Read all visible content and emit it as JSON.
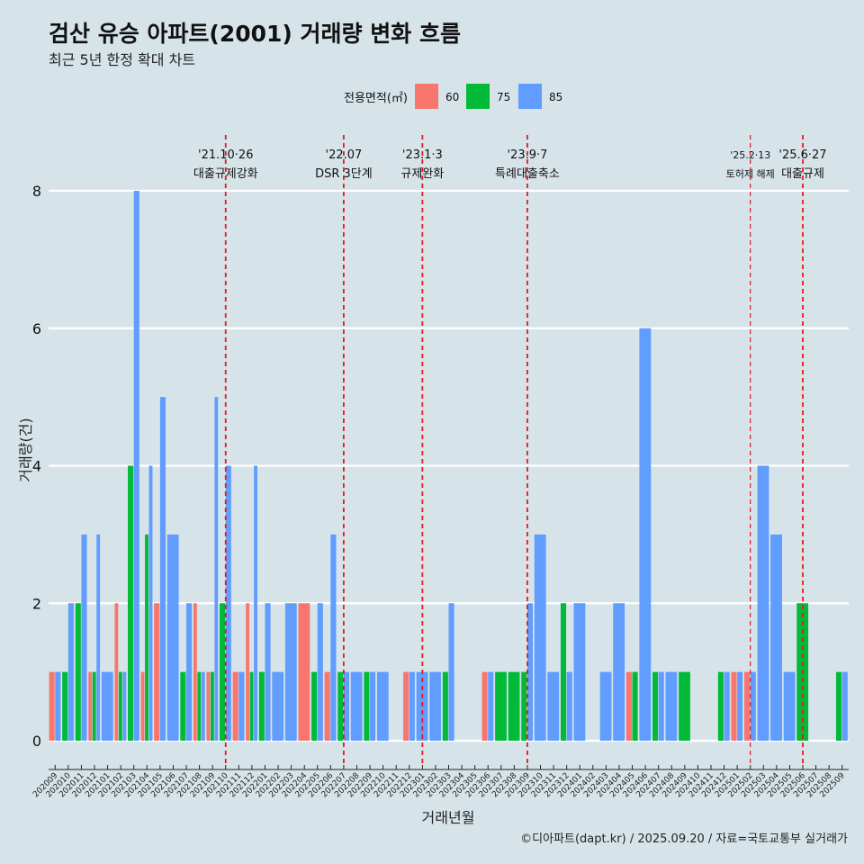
{
  "title": "검산 유승 아파트(2001) 거래량 변화 흐름",
  "subtitle": "최근 5년 한정 확대 차트",
  "caption": "©디아파트(dapt.kr) / 2025.09.20 / 자료=국토교통부 실거래가",
  "colors": {
    "60": "#f8766d",
    "75": "#00ba38",
    "85": "#619cff",
    "background": "#d6e4ea",
    "policy_line": "#e41a1c"
  },
  "chart_data": {
    "type": "bar",
    "title": "검산 유승 아파트(2001) 거래량 변화 흐름",
    "subtitle": "최근 5년 한정 확대 차트",
    "xlabel": "거래년월",
    "ylabel": "거래량(건)",
    "ylim": [
      0,
      8
    ],
    "yticks": [
      0,
      2,
      4,
      6,
      8
    ],
    "grid": "horizontal",
    "legend": {
      "title": "전용면적(㎡)",
      "position": "top",
      "entries": [
        "60",
        "75",
        "85"
      ]
    },
    "categories": [
      "202009",
      "202010",
      "202011",
      "202012",
      "202101",
      "202102",
      "202103",
      "202104",
      "202105",
      "202106",
      "202107",
      "202108",
      "202109",
      "202110",
      "202111",
      "202112",
      "202201",
      "202202",
      "202203",
      "202204",
      "202205",
      "202206",
      "202207",
      "202208",
      "202209",
      "202210",
      "202211",
      "202212",
      "202301",
      "202302",
      "202303",
      "202304",
      "202305",
      "202306",
      "202307",
      "202308",
      "202309",
      "202310",
      "202311",
      "202312",
      "202401",
      "202402",
      "202403",
      "202404",
      "202405",
      "202406",
      "202407",
      "202408",
      "202409",
      "202410",
      "202411",
      "202412",
      "202501",
      "202502",
      "202503",
      "202504",
      "202505",
      "202506",
      "202507",
      "202508",
      "202509"
    ],
    "series": [
      {
        "name": "60",
        "values": [
          1,
          0,
          0,
          1,
          0,
          2,
          0,
          1,
          2,
          0,
          0,
          2,
          1,
          0,
          1,
          2,
          0,
          0,
          0,
          2,
          0,
          1,
          0,
          0,
          0,
          0,
          0,
          1,
          0,
          0,
          0,
          0,
          0,
          1,
          0,
          0,
          0,
          0,
          0,
          0,
          0,
          0,
          0,
          0,
          1,
          0,
          0,
          0,
          0,
          0,
          0,
          0,
          1,
          1,
          0,
          0,
          0,
          0,
          0,
          0,
          0
        ]
      },
      {
        "name": "75",
        "values": [
          0,
          1,
          2,
          1,
          0,
          1,
          4,
          3,
          0,
          0,
          1,
          1,
          1,
          2,
          0,
          1,
          1,
          0,
          0,
          0,
          1,
          0,
          1,
          0,
          1,
          0,
          0,
          0,
          0,
          0,
          1,
          0,
          0,
          0,
          1,
          1,
          1,
          0,
          0,
          2,
          0,
          0,
          0,
          0,
          1,
          0,
          1,
          0,
          1,
          0,
          0,
          1,
          0,
          0,
          0,
          0,
          0,
          2,
          0,
          0,
          1
        ]
      },
      {
        "name": "85",
        "values": [
          1,
          2,
          3,
          3,
          1,
          1,
          8,
          4,
          5,
          3,
          2,
          1,
          5,
          4,
          1,
          4,
          2,
          1,
          2,
          0,
          2,
          3,
          1,
          1,
          1,
          1,
          0,
          1,
          1,
          1,
          2,
          0,
          0,
          1,
          0,
          0,
          2,
          3,
          1,
          1,
          2,
          0,
          1,
          2,
          0,
          6,
          1,
          1,
          0,
          0,
          0,
          1,
          1,
          1,
          4,
          3,
          1,
          0,
          0,
          0,
          1
        ]
      }
    ],
    "annotations": [
      {
        "date": "'21.10·26",
        "label": "대출규제강화"
      },
      {
        "date": "'22.07",
        "label": "DSR 3단계"
      },
      {
        "date": "'23.1·3",
        "label": "규제완화"
      },
      {
        "date": "'23.9·7",
        "label": "특례대출축소"
      },
      {
        "date": "'25.2·13",
        "label": "토허제 해제"
      },
      {
        "date": "'25.6·27",
        "label": "대출규제"
      }
    ]
  }
}
